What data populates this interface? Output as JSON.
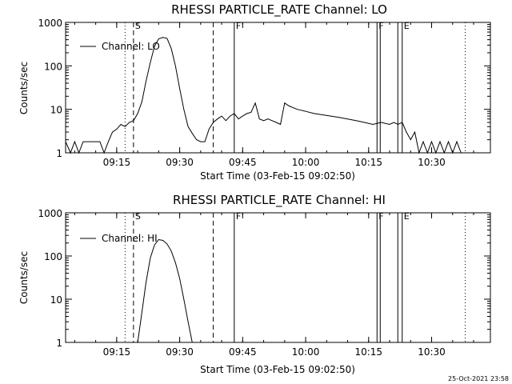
{
  "chart_data": [
    {
      "type": "line",
      "title": "RHESSI PARTICLE_RATE Channel: LO",
      "xlabel": "Start Time (03-Feb-15 09:02:50)",
      "ylabel": "Counts/sec",
      "yscale": "log",
      "ylim": [
        1,
        1000
      ],
      "xlim": [
        "09:02:50",
        "10:44:00"
      ],
      "x_ticks": [
        "09:15",
        "09:30",
        "09:45",
        "10:00",
        "10:15",
        "10:30"
      ],
      "y_ticks": [
        "1",
        "10",
        "100",
        "1000"
      ],
      "legend": {
        "label": "Channel: LO",
        "position": "top-left"
      },
      "series": [
        {
          "name": "Channel: LO",
          "x": [
            "09:02:50",
            "09:04",
            "09:05",
            "09:06",
            "09:07",
            "09:08",
            "09:09",
            "09:10",
            "09:11",
            "09:12",
            "09:13",
            "09:14",
            "09:15",
            "09:16",
            "09:17",
            "09:18",
            "09:19",
            "09:20",
            "09:21",
            "09:22",
            "09:23",
            "09:24",
            "09:25",
            "09:26",
            "09:27",
            "09:28",
            "09:29",
            "09:30",
            "09:31",
            "09:32",
            "09:33",
            "09:34",
            "09:35",
            "09:36",
            "09:37",
            "09:38",
            "09:39",
            "09:40",
            "09:41",
            "09:42",
            "09:43",
            "09:44",
            "09:45",
            "09:46",
            "09:47",
            "09:48",
            "09:49",
            "09:50",
            "09:51",
            "09:52",
            "09:53",
            "09:54",
            "09:55",
            "09:56",
            "09:58",
            "10:00",
            "10:02",
            "10:04",
            "10:06",
            "10:08",
            "10:10",
            "10:12",
            "10:14",
            "10:16",
            "10:18",
            "10:20",
            "10:21",
            "10:22",
            "10:23",
            "10:24",
            "10:25",
            "10:26",
            "10:27",
            "10:28",
            "10:29",
            "10:30",
            "10:31",
            "10:32",
            "10:33",
            "10:34",
            "10:35",
            "10:36",
            "10:37"
          ],
          "values": [
            1.8,
            1,
            1.8,
            1,
            1.8,
            1.8,
            1.8,
            1.8,
            1.8,
            1,
            1.8,
            3,
            3.5,
            4.5,
            4,
            5,
            5.5,
            8,
            15,
            45,
            120,
            280,
            420,
            450,
            430,
            250,
            100,
            30,
            10,
            4,
            2.8,
            2,
            1.8,
            1.8,
            3.5,
            5,
            6,
            7,
            5.5,
            7,
            8,
            6,
            7,
            8,
            8.5,
            14,
            6,
            5.5,
            6,
            5.5,
            5,
            4.5,
            14,
            12,
            10,
            9,
            8,
            7.5,
            7,
            6.5,
            6,
            5.5,
            5,
            4.5,
            5,
            4.5,
            5,
            4.5,
            5,
            3,
            2,
            3,
            1,
            1.8,
            1,
            1.8,
            1,
            1.8,
            1,
            1.8,
            1,
            1.8,
            1
          ]
        }
      ],
      "annotations": [
        {
          "label": "S",
          "time": "09:19"
        },
        {
          "label": "",
          "time": "09:38"
        },
        {
          "label": "F",
          "time": "09:43"
        },
        {
          "label": "F",
          "time": "10:17"
        },
        {
          "label": "E",
          "time": "10:23"
        },
        {
          "label": "",
          "time": "09:17"
        },
        {
          "label": "",
          "time": "10:38"
        }
      ]
    },
    {
      "type": "line",
      "title": "RHESSI PARTICLE_RATE Channel: HI",
      "xlabel": "Start Time (03-Feb-15 09:02:50)",
      "ylabel": "Counts/sec",
      "yscale": "log",
      "ylim": [
        1,
        1000
      ],
      "xlim": [
        "09:02:50",
        "10:44:00"
      ],
      "x_ticks": [
        "09:15",
        "09:30",
        "09:45",
        "10:00",
        "10:15",
        "10:30"
      ],
      "y_ticks": [
        "1",
        "10",
        "100",
        "1000"
      ],
      "legend": {
        "label": "Channel: HI",
        "position": "top-left"
      },
      "series": [
        {
          "name": "Channel: HI",
          "x": [
            "09:20",
            "09:21",
            "09:22",
            "09:23",
            "09:24",
            "09:25",
            "09:26",
            "09:27",
            "09:28",
            "09:29",
            "09:30",
            "09:31",
            "09:32",
            "09:33"
          ],
          "values": [
            1,
            5,
            25,
            90,
            180,
            240,
            230,
            190,
            130,
            70,
            30,
            10,
            3,
            1
          ]
        }
      ],
      "annotations": [
        {
          "label": "S",
          "time": "09:19"
        },
        {
          "label": "",
          "time": "09:38"
        },
        {
          "label": "F",
          "time": "09:43"
        },
        {
          "label": "F",
          "time": "10:17"
        },
        {
          "label": "E",
          "time": "10:23"
        },
        {
          "label": "",
          "time": "09:17"
        },
        {
          "label": "",
          "time": "10:38"
        }
      ]
    }
  ],
  "footer": {
    "timestamp": "25-Oct-2021 23:58"
  }
}
